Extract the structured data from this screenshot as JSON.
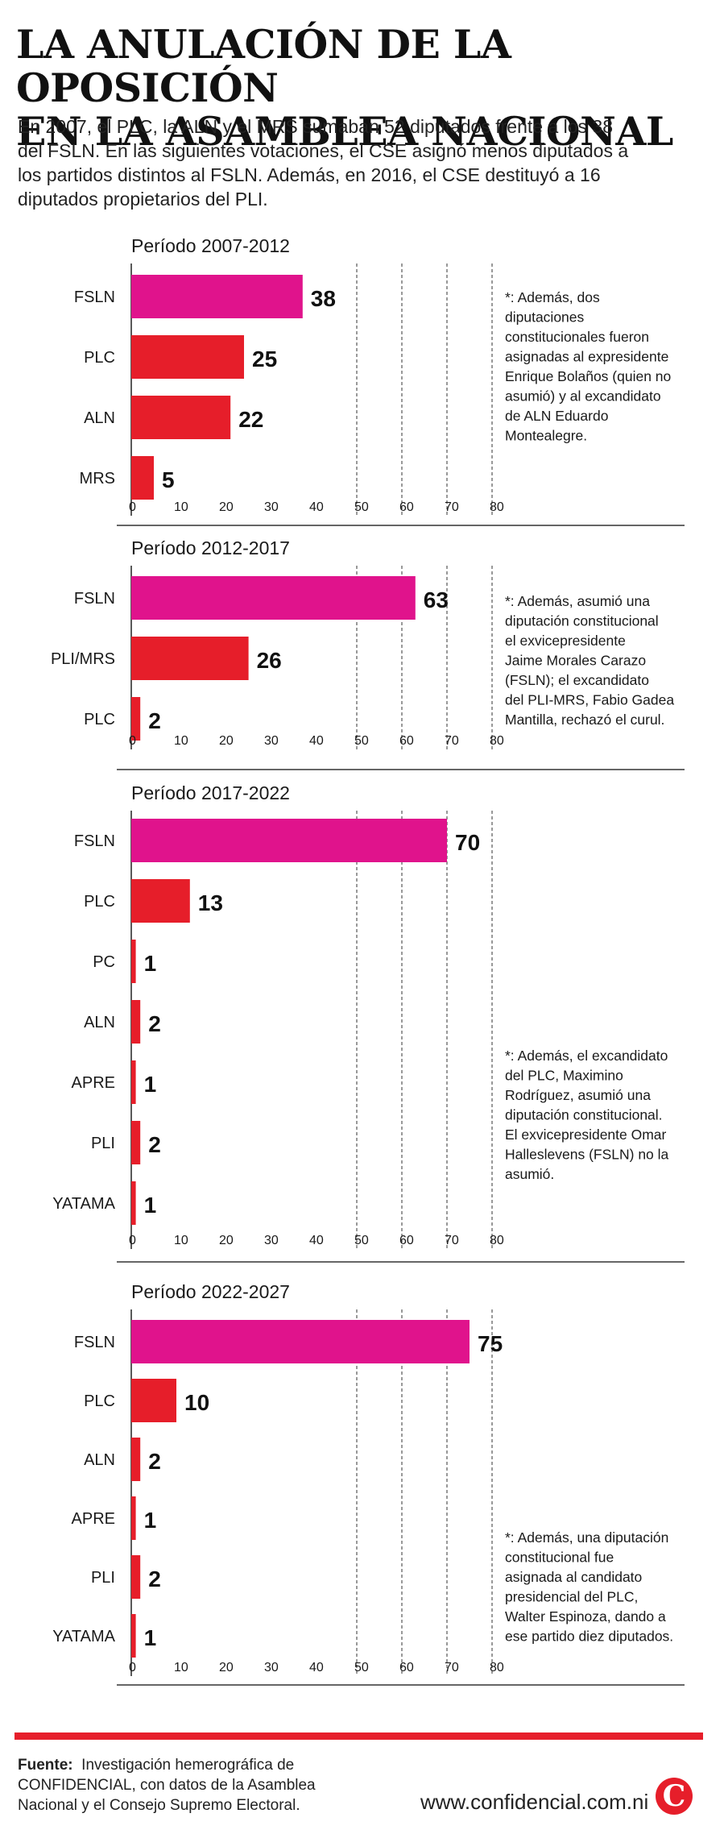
{
  "header": {
    "title_lines": [
      "LA ANULACIÓN DE LA OPOSICIÓN",
      "EN LA ASAMBLEA NACIONAL"
    ],
    "intro_lines": [
      "En 2007, el PLC, la ALN y el MRS sumaban 52 diputados frente a los 38",
      "del FSLN. En las siguientes votaciones, el CSE asignó menos diputados a",
      "los partidos distintos al FSLN. Además, en 2016, el CSE destituyó a 16",
      "diputados propietarios del PLI."
    ]
  },
  "colors": {
    "fsln": "#e0138c",
    "opposition": "#e61e2a",
    "grid": "#333333",
    "axis": "#222222"
  },
  "chart_data": [
    {
      "type": "bar",
      "orientation": "horizontal",
      "title": "Período 2007-2012",
      "categories": [
        "FSLN",
        "PLC",
        "ALN",
        "MRS"
      ],
      "values": [
        38,
        25,
        22,
        5
      ],
      "xlim": [
        0,
        80
      ],
      "ticks": [
        0,
        10,
        20,
        30,
        40,
        50,
        60,
        70,
        80
      ],
      "dashed_gridlines": [
        50,
        60,
        70,
        80
      ],
      "note_lines": [
        "*: Además, dos",
        "diputaciones",
        "constitucionales fueron",
        "asignadas al expresidente",
        "Enrique Bolaños (quien no",
        "asumió) y al excandidato",
        "de ALN Eduardo",
        "Montealegre."
      ]
    },
    {
      "type": "bar",
      "orientation": "horizontal",
      "title": "Período 2012-2017",
      "categories": [
        "FSLN",
        "PLI/MRS",
        "PLC"
      ],
      "values": [
        63,
        26,
        2
      ],
      "xlim": [
        0,
        80
      ],
      "ticks": [
        0,
        10,
        20,
        30,
        40,
        50,
        60,
        70,
        80
      ],
      "dashed_gridlines": [
        50,
        60,
        70,
        80
      ],
      "note_lines": [
        "*: Además, asumió una",
        "diputación constitucional",
        "el exvicepresidente",
        "Jaime Morales Carazo",
        "(FSLN); el excandidato",
        "del PLI-MRS, Fabio Gadea",
        "Mantilla, rechazó el curul."
      ]
    },
    {
      "type": "bar",
      "orientation": "horizontal",
      "title": "Período 2017-2022",
      "categories": [
        "FSLN",
        "PLC",
        "PC",
        "ALN",
        "APRE",
        "PLI",
        "YATAMA"
      ],
      "values": [
        70,
        13,
        1,
        2,
        1,
        2,
        1
      ],
      "xlim": [
        0,
        80
      ],
      "ticks": [
        0,
        10,
        20,
        30,
        40,
        50,
        60,
        70,
        80
      ],
      "dashed_gridlines": [
        50,
        60,
        70,
        80
      ],
      "note_lines": [
        "*: Además, el excandidato",
        "del PLC, Maximino",
        "Rodríguez, asumió una",
        "diputación constitucional.",
        "El exvicepresidente Omar",
        "Halleslevens (FSLN) no la",
        "asumió."
      ]
    },
    {
      "type": "bar",
      "orientation": "horizontal",
      "title": "Período 2022-2027",
      "categories": [
        "FSLN",
        "PLC",
        "ALN",
        "APRE",
        "PLI",
        "YATAMA"
      ],
      "values": [
        75,
        10,
        2,
        1,
        2,
        1
      ],
      "xlim": [
        0,
        80
      ],
      "ticks": [
        0,
        10,
        20,
        30,
        40,
        50,
        60,
        70,
        80
      ],
      "dashed_gridlines": [
        50,
        60,
        70,
        80
      ],
      "note_lines": [
        "*: Además, una diputación",
        "constitucional fue",
        "asignada al candidato",
        "presidencial del PLC,",
        "Walter Espinoza, dando a",
        "ese partido diez diputados."
      ]
    }
  ],
  "footer": {
    "source_label": "Fuente:",
    "source_lines": [
      "Investigación hemerográfica de",
      "CONFIDENCIAL, con datos de la Asamblea",
      "Nacional y el Consejo Supremo Electoral."
    ],
    "website": "www.confidencial.com.ni",
    "logo_letter": "C"
  }
}
